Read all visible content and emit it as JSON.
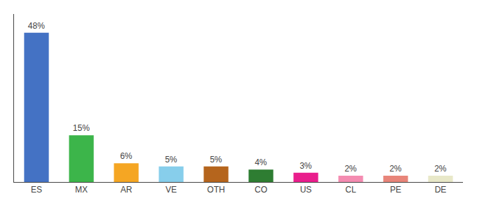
{
  "chart_data": {
    "type": "bar",
    "categories": [
      "ES",
      "MX",
      "AR",
      "VE",
      "OTH",
      "CO",
      "US",
      "CL",
      "PE",
      "DE"
    ],
    "values": [
      48,
      15,
      6,
      5,
      5,
      4,
      3,
      2,
      2,
      2
    ],
    "value_labels": [
      "48%",
      "15%",
      "6%",
      "5%",
      "5%",
      "4%",
      "3%",
      "2%",
      "2%",
      "2%"
    ],
    "colors": [
      "#4472c4",
      "#3cb54a",
      "#f5a623",
      "#87ceeb",
      "#b5651d",
      "#2e7d32",
      "#e91e8c",
      "#f48cb1",
      "#e8857a",
      "#e8e8c8"
    ],
    "ylim": [
      0,
      54
    ],
    "grid": false,
    "data_labels": true,
    "tick_labels": "x"
  }
}
